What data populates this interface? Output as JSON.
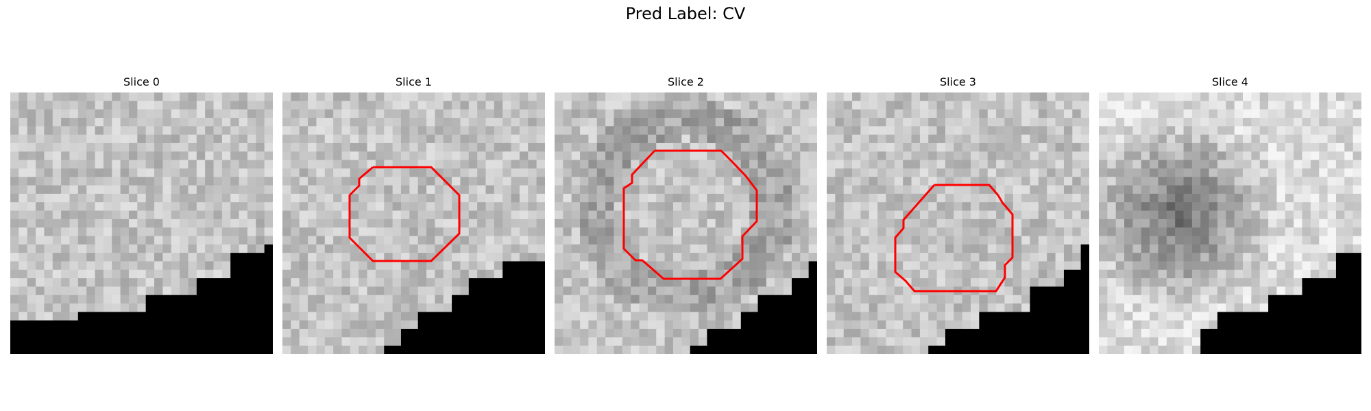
{
  "figure": {
    "title": "Pred Label: CV"
  },
  "slices": [
    {
      "title": "Slice 0",
      "has_contour": false
    },
    {
      "title": "Slice 1",
      "has_contour": true
    },
    {
      "title": "Slice 2",
      "has_contour": true
    },
    {
      "title": "Slice 3",
      "has_contour": true
    },
    {
      "title": "Slice 4",
      "has_contour": false
    }
  ],
  "colors": {
    "contour": "#ff0000",
    "background": "#ffffff",
    "mask": "#000000"
  }
}
